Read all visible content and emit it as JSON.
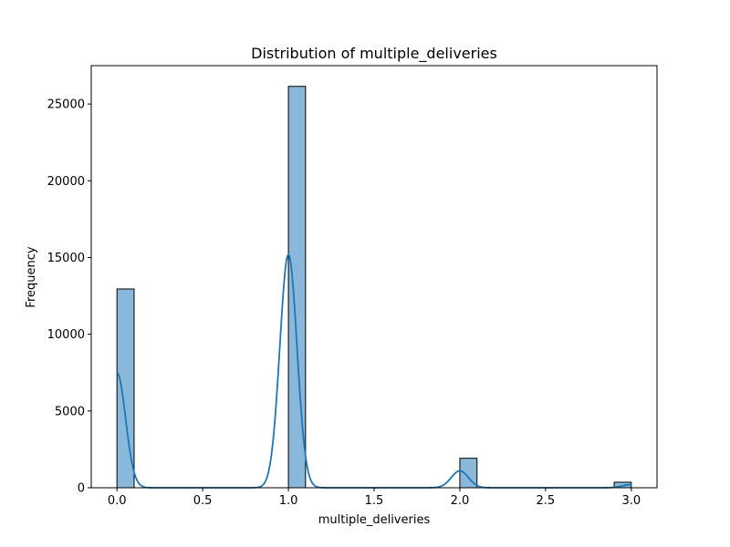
{
  "chart_data": {
    "type": "bar",
    "subtype": "histogram_with_kde",
    "title": "Distribution of multiple_deliveries",
    "xlabel": "multiple_deliveries",
    "ylabel": "Frequency",
    "xlim": [
      -0.15,
      3.15
    ],
    "ylim": [
      0,
      27500
    ],
    "xticks": [
      0.0,
      0.5,
      1.0,
      1.5,
      2.0,
      2.5,
      3.0
    ],
    "xtick_labels": [
      "0.0",
      "0.5",
      "1.0",
      "1.5",
      "2.0",
      "2.5",
      "3.0"
    ],
    "yticks": [
      0,
      5000,
      10000,
      15000,
      20000,
      25000
    ],
    "ytick_labels": [
      "0",
      "5000",
      "10000",
      "15000",
      "20000",
      "25000"
    ],
    "bin_width": 0.1,
    "bars": [
      {
        "x_start": 0.0,
        "value": 12950
      },
      {
        "x_start": 1.0,
        "value": 26150
      },
      {
        "x_start": 2.0,
        "value": 1920
      },
      {
        "x_start": 2.9,
        "value": 360
      }
    ],
    "kde": {
      "peaks": [
        {
          "center": 0.0,
          "height": 7500,
          "sigma": 0.05
        },
        {
          "center": 1.0,
          "height": 15200,
          "sigma": 0.05
        },
        {
          "center": 2.0,
          "height": 1100,
          "sigma": 0.05
        },
        {
          "center": 3.0,
          "height": 210,
          "sigma": 0.05
        }
      ],
      "x_range": [
        0.0,
        3.0
      ]
    },
    "bar_color": "#8ab8db",
    "bar_edge_color": "#000000",
    "line_color": "#1f77b4",
    "grid": false
  }
}
